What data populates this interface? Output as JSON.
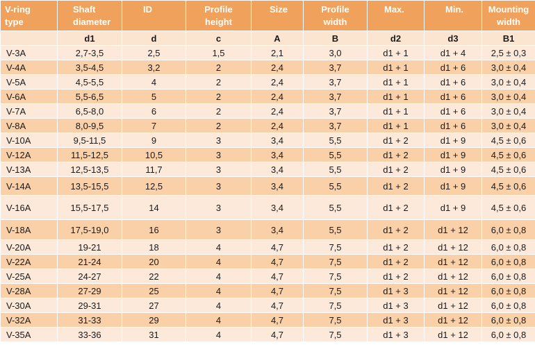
{
  "columns": [
    {
      "header": [
        "V-ring",
        "type"
      ],
      "sub": ""
    },
    {
      "header": [
        "Shaft",
        "diameter"
      ],
      "sub": "d1"
    },
    {
      "header": [
        "ID",
        ""
      ],
      "sub": "d"
    },
    {
      "header": [
        "Profile",
        "height"
      ],
      "sub": "c"
    },
    {
      "header": [
        "Size",
        ""
      ],
      "sub": "A"
    },
    {
      "header": [
        "Profile",
        "width"
      ],
      "sub": "B"
    },
    {
      "header": [
        "Max.",
        ""
      ],
      "sub": "d2"
    },
    {
      "header": [
        "Min.",
        ""
      ],
      "sub": "d3"
    },
    {
      "header": [
        "Mounting",
        "width"
      ],
      "sub": "B1"
    }
  ],
  "rows": [
    [
      "V-3A",
      "2,7-3,5",
      "2,5",
      "1,5",
      "2,1",
      "3,0",
      "d1  + 1",
      "d1 + 4",
      "2,5 ± 0,3"
    ],
    [
      "V-4A",
      "3,5-4,5",
      "3,2",
      "2",
      "2,4",
      "3,7",
      "d1  + 1",
      "d1 + 6",
      "3,0 ± 0,4"
    ],
    [
      "V-5A",
      "4,5-5,5",
      "4",
      "2",
      "2,4",
      "3,7",
      "d1  + 1",
      "d1 + 6",
      "3,0 ± 0,4"
    ],
    [
      "V-6A",
      "5,5-6,5",
      "5",
      "2",
      "2,4",
      "3,7",
      "d1  + 1",
      "d1 + 6",
      "3,0 ± 0,4"
    ],
    [
      "V-7A",
      "6,5-8,0",
      "6",
      "2",
      "2,4",
      "3,7",
      "d1  + 1",
      "d1 + 6",
      "3,0 ± 0,4"
    ],
    [
      "V-8A",
      "8,0-9,5",
      "7",
      "2",
      "2,4",
      "3,7",
      "d1  + 1",
      "d1 + 6",
      "3,0 ± 0,4"
    ],
    [
      "V-10A",
      "9,5-11,5",
      "9",
      "3",
      "3,4",
      "5,5",
      "d1 + 2",
      "d1 + 9",
      "4,5 ± 0,6"
    ],
    [
      "V-12A",
      "11,5-12,5",
      "10,5",
      "3",
      "3,4",
      "5,5",
      "d1 + 2",
      "d1 + 9",
      "4,5 ± 0,6"
    ],
    [
      "V-13A",
      "12,5-13,5",
      "11,7",
      "3",
      "3,4",
      "5,5",
      "d1 + 2",
      "d1 + 9",
      "4,5 ± 0,6"
    ],
    [
      "V-14A",
      "13,5-15,5",
      "12,5",
      "3",
      "3,4",
      "5,5",
      "d1 + 2",
      "d1 + 9",
      "4,5 ± 0,6"
    ],
    [
      "V-16A",
      "15,5-17,5",
      "14",
      "3",
      "3,4",
      "5,5",
      "d1 + 2",
      "d1 + 9",
      "4,5 ± 0,6"
    ],
    [
      "V-18A",
      "17,5-19,0",
      "16",
      "3",
      "3,4",
      "5,5",
      "d1 + 2",
      "d1 + 12",
      "6,0 ± 0,8"
    ],
    [
      "V-20A",
      "19-21",
      "18",
      "4",
      "4,7",
      "7,5",
      "d1 + 2",
      "d1 + 12",
      "6,0 ± 0,8"
    ],
    [
      "V-22A",
      "21-24",
      "20",
      "4",
      "4,7",
      "7,5",
      "d1 + 2",
      "d1 + 12",
      "6,0 ± 0,8"
    ],
    [
      "V-25A",
      "24-27",
      "22",
      "4",
      "4,7",
      "7,5",
      "d1 + 2",
      "d1 + 12",
      "6,0 ± 0,8"
    ],
    [
      "V-28A",
      "27-29",
      "25",
      "4",
      "4,7",
      "7,5",
      "d1 + 3",
      "d1 + 12",
      "6,0 ± 0,8"
    ],
    [
      "V-30A",
      "29-31",
      "27",
      "4",
      "4,7",
      "7,5",
      "d1 + 3",
      "d1 + 12",
      "6,0 ± 0,8"
    ],
    [
      "V-32A",
      "31-33",
      "29",
      "4",
      "4,7",
      "7,5",
      "d1 + 3",
      "d1 + 12",
      "6,0 ± 0,8"
    ],
    [
      "V-35A",
      "33-36",
      "31",
      "4",
      "4,7",
      "7,5",
      "d1 + 3",
      "d1 + 12",
      "6,0 ± 0,8"
    ]
  ],
  "colors": {
    "header": "#f0a15c",
    "row_light": "#fde9d9",
    "row_dark": "#fad0a9",
    "subheader": "#fbe5d0"
  }
}
